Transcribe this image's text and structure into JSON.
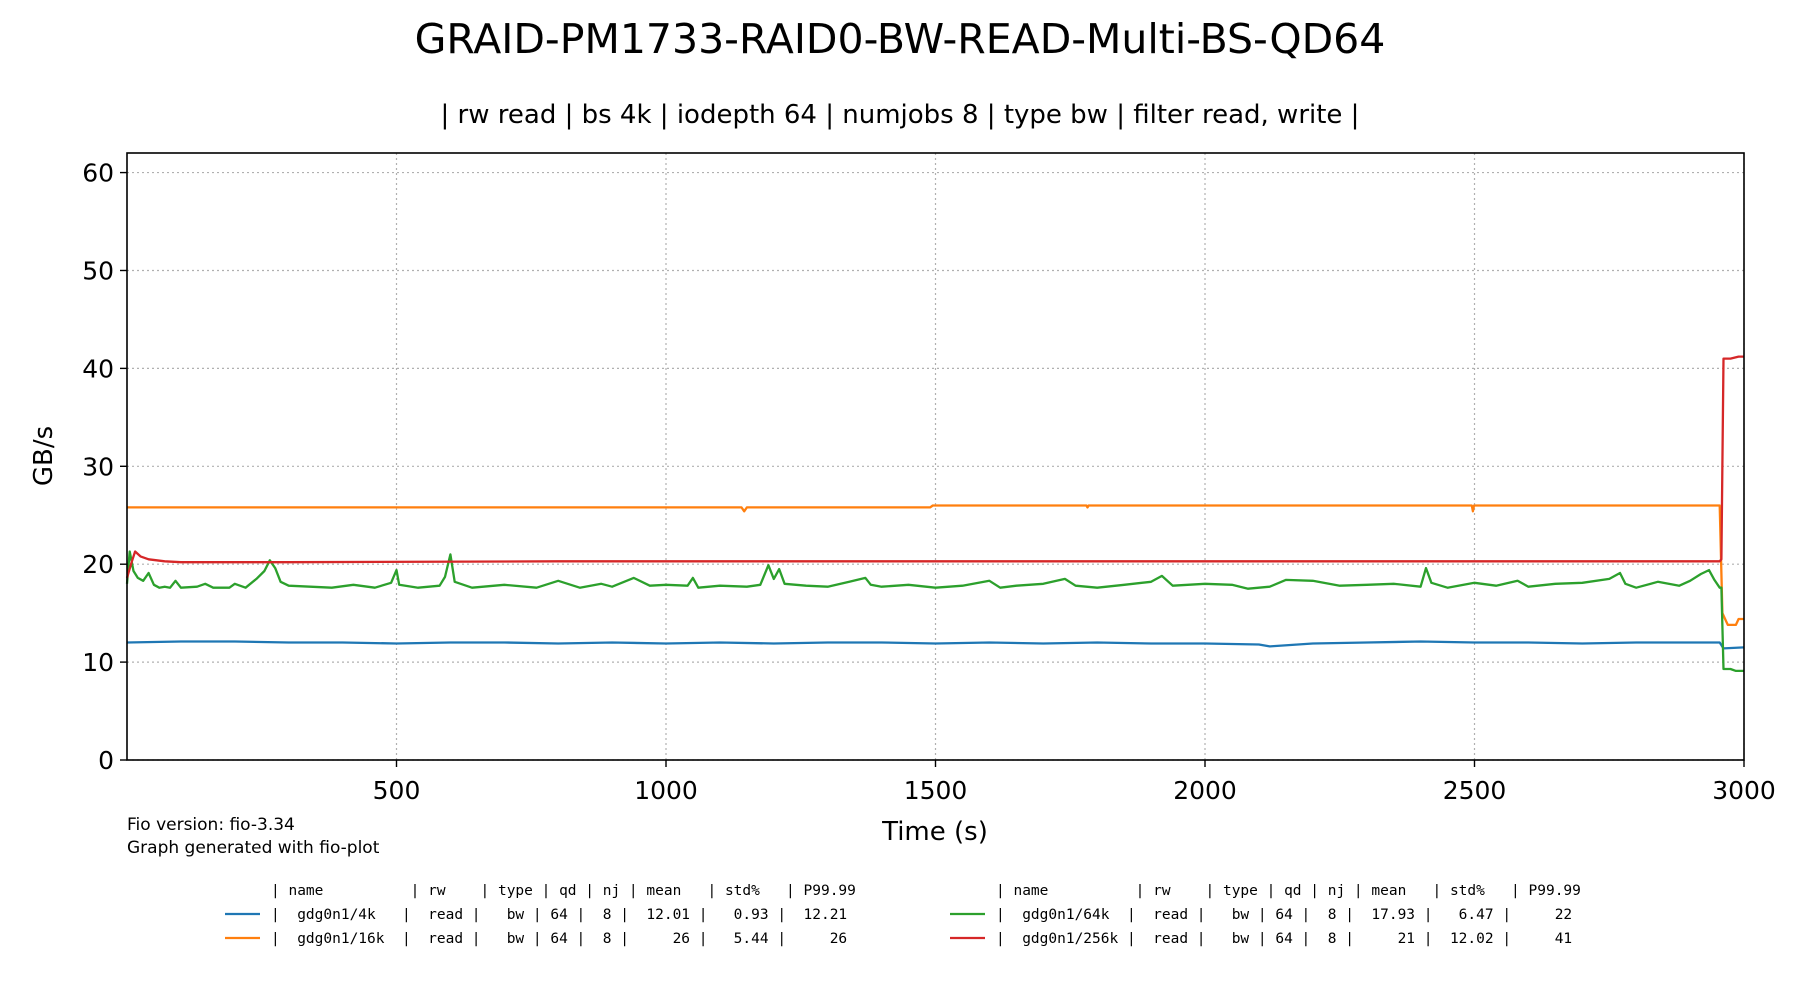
{
  "chart_data": {
    "type": "line",
    "title": "GRAID-PM1733-RAID0-BW-READ-Multi-BS-QD64",
    "subtitle": "| rw read | bs 4k | iodepth 64 | numjobs 8 | type bw | filter read, write |",
    "xlabel": "Time (s)",
    "ylabel": "GB/s",
    "xlim": [
      0,
      3000
    ],
    "ylim": [
      0,
      62
    ],
    "xticks": [
      500,
      1000,
      1500,
      2000,
      2500,
      3000
    ],
    "yticks": [
      0,
      10,
      20,
      30,
      40,
      50,
      60
    ],
    "grid": true,
    "series": [
      {
        "name": "gdg0n1/4k",
        "color": "#1f77b4",
        "points": [
          [
            0,
            12.0
          ],
          [
            100,
            12.1
          ],
          [
            200,
            12.1
          ],
          [
            300,
            12.0
          ],
          [
            400,
            12.0
          ],
          [
            500,
            11.9
          ],
          [
            600,
            12.0
          ],
          [
            700,
            12.0
          ],
          [
            800,
            11.9
          ],
          [
            900,
            12.0
          ],
          [
            1000,
            11.9
          ],
          [
            1100,
            12.0
          ],
          [
            1200,
            11.9
          ],
          [
            1300,
            12.0
          ],
          [
            1400,
            12.0
          ],
          [
            1500,
            11.9
          ],
          [
            1600,
            12.0
          ],
          [
            1700,
            11.9
          ],
          [
            1800,
            12.0
          ],
          [
            1900,
            11.9
          ],
          [
            2000,
            11.9
          ],
          [
            2100,
            11.8
          ],
          [
            2120,
            11.6
          ],
          [
            2200,
            11.9
          ],
          [
            2300,
            12.0
          ],
          [
            2400,
            12.1
          ],
          [
            2500,
            12.0
          ],
          [
            2600,
            12.0
          ],
          [
            2700,
            11.9
          ],
          [
            2800,
            12.0
          ],
          [
            2900,
            12.0
          ],
          [
            2955,
            12.0
          ],
          [
            2962,
            11.4
          ],
          [
            3000,
            11.5
          ]
        ]
      },
      {
        "name": "gdg0n1/16k",
        "color": "#ff7f0e",
        "points": [
          [
            0,
            25.8
          ],
          [
            100,
            25.8
          ],
          [
            500,
            25.8
          ],
          [
            1000,
            25.8
          ],
          [
            1140,
            25.8
          ],
          [
            1145,
            25.4
          ],
          [
            1150,
            25.8
          ],
          [
            1490,
            25.8
          ],
          [
            1495,
            26.0
          ],
          [
            1780,
            26.0
          ],
          [
            1782,
            25.8
          ],
          [
            1784,
            26.0
          ],
          [
            2000,
            26.0
          ],
          [
            2495,
            26.0
          ],
          [
            2497,
            25.4
          ],
          [
            2499,
            26.0
          ],
          [
            2955,
            26.0
          ],
          [
            2960,
            15.0
          ],
          [
            2970,
            13.8
          ],
          [
            2985,
            13.8
          ],
          [
            2990,
            14.4
          ],
          [
            3000,
            14.4
          ]
        ]
      },
      {
        "name": "gdg0n1/64k",
        "color": "#2ca02c",
        "points": [
          [
            0,
            18.0
          ],
          [
            5,
            21.3
          ],
          [
            12,
            19.3
          ],
          [
            20,
            18.6
          ],
          [
            30,
            18.3
          ],
          [
            40,
            19.1
          ],
          [
            50,
            17.9
          ],
          [
            60,
            17.6
          ],
          [
            70,
            17.7
          ],
          [
            80,
            17.6
          ],
          [
            90,
            18.3
          ],
          [
            100,
            17.6
          ],
          [
            130,
            17.7
          ],
          [
            145,
            18.0
          ],
          [
            160,
            17.6
          ],
          [
            190,
            17.6
          ],
          [
            200,
            18.0
          ],
          [
            220,
            17.6
          ],
          [
            240,
            18.5
          ],
          [
            255,
            19.3
          ],
          [
            265,
            20.4
          ],
          [
            275,
            19.6
          ],
          [
            285,
            18.2
          ],
          [
            300,
            17.8
          ],
          [
            340,
            17.7
          ],
          [
            380,
            17.6
          ],
          [
            420,
            17.9
          ],
          [
            460,
            17.6
          ],
          [
            490,
            18.1
          ],
          [
            500,
            19.4
          ],
          [
            505,
            17.9
          ],
          [
            540,
            17.6
          ],
          [
            580,
            17.8
          ],
          [
            590,
            18.7
          ],
          [
            600,
            21.0
          ],
          [
            608,
            18.2
          ],
          [
            640,
            17.6
          ],
          [
            700,
            17.9
          ],
          [
            760,
            17.6
          ],
          [
            800,
            18.3
          ],
          [
            840,
            17.6
          ],
          [
            880,
            18.0
          ],
          [
            900,
            17.7
          ],
          [
            940,
            18.6
          ],
          [
            970,
            17.8
          ],
          [
            1000,
            17.9
          ],
          [
            1040,
            17.8
          ],
          [
            1050,
            18.6
          ],
          [
            1060,
            17.6
          ],
          [
            1100,
            17.8
          ],
          [
            1150,
            17.7
          ],
          [
            1175,
            17.9
          ],
          [
            1190,
            19.9
          ],
          [
            1200,
            18.5
          ],
          [
            1210,
            19.5
          ],
          [
            1220,
            18.0
          ],
          [
            1260,
            17.8
          ],
          [
            1300,
            17.7
          ],
          [
            1340,
            18.2
          ],
          [
            1370,
            18.6
          ],
          [
            1380,
            17.9
          ],
          [
            1400,
            17.7
          ],
          [
            1450,
            17.9
          ],
          [
            1500,
            17.6
          ],
          [
            1550,
            17.8
          ],
          [
            1600,
            18.3
          ],
          [
            1620,
            17.6
          ],
          [
            1650,
            17.8
          ],
          [
            1700,
            18.0
          ],
          [
            1740,
            18.5
          ],
          [
            1760,
            17.8
          ],
          [
            1800,
            17.6
          ],
          [
            1850,
            17.9
          ],
          [
            1900,
            18.2
          ],
          [
            1920,
            18.8
          ],
          [
            1940,
            17.8
          ],
          [
            2000,
            18.0
          ],
          [
            2050,
            17.9
          ],
          [
            2080,
            17.5
          ],
          [
            2120,
            17.7
          ],
          [
            2150,
            18.4
          ],
          [
            2200,
            18.3
          ],
          [
            2250,
            17.8
          ],
          [
            2300,
            17.9
          ],
          [
            2350,
            18.0
          ],
          [
            2400,
            17.7
          ],
          [
            2410,
            19.6
          ],
          [
            2420,
            18.1
          ],
          [
            2450,
            17.6
          ],
          [
            2500,
            18.1
          ],
          [
            2540,
            17.8
          ],
          [
            2580,
            18.3
          ],
          [
            2600,
            17.7
          ],
          [
            2650,
            18.0
          ],
          [
            2700,
            18.1
          ],
          [
            2750,
            18.5
          ],
          [
            2770,
            19.1
          ],
          [
            2780,
            18.0
          ],
          [
            2800,
            17.6
          ],
          [
            2840,
            18.2
          ],
          [
            2880,
            17.8
          ],
          [
            2900,
            18.3
          ],
          [
            2920,
            19.0
          ],
          [
            2935,
            19.4
          ],
          [
            2945,
            18.4
          ],
          [
            2955,
            17.6
          ],
          [
            2958,
            17.6
          ],
          [
            2962,
            9.3
          ],
          [
            2975,
            9.3
          ],
          [
            2985,
            9.1
          ],
          [
            3000,
            9.1
          ]
        ]
      },
      {
        "name": "gdg0n1/256k",
        "color": "#d62728",
        "points": [
          [
            0,
            18.6
          ],
          [
            8,
            20.1
          ],
          [
            15,
            21.3
          ],
          [
            25,
            20.8
          ],
          [
            40,
            20.5
          ],
          [
            70,
            20.3
          ],
          [
            100,
            20.2
          ],
          [
            300,
            20.2
          ],
          [
            800,
            20.3
          ],
          [
            1000,
            20.3
          ],
          [
            1500,
            20.3
          ],
          [
            2000,
            20.3
          ],
          [
            2500,
            20.3
          ],
          [
            2955,
            20.3
          ],
          [
            2958,
            20.5
          ],
          [
            2962,
            41.0
          ],
          [
            2975,
            41.0
          ],
          [
            2990,
            41.2
          ],
          [
            3000,
            41.2
          ]
        ]
      }
    ],
    "footnote": [
      "Fio version: fio-3.34",
      "Graph generated with fio-plot"
    ],
    "legend_table": {
      "header": "| name          | rw    | type | qd | nj | mean   | std%   | P99.99",
      "rows_left": [
        {
          "series": "gdg0n1/4k",
          "text": "|  gdg0n1/4k   |  read |   bw | 64 |  8 |  12.01 |   0.93 |  12.21"
        },
        {
          "series": "gdg0n1/16k",
          "text": "|  gdg0n1/16k  |  read |   bw | 64 |  8 |     26 |   5.44 |     26"
        }
      ],
      "rows_right": [
        {
          "series": "gdg0n1/64k",
          "text": "|  gdg0n1/64k  |  read |   bw | 64 |  8 |  17.93 |   6.47 |     22"
        },
        {
          "series": "gdg0n1/256k",
          "text": "|  gdg0n1/256k |  read |   bw | 64 |  8 |     21 |  12.02 |     41"
        }
      ]
    }
  }
}
